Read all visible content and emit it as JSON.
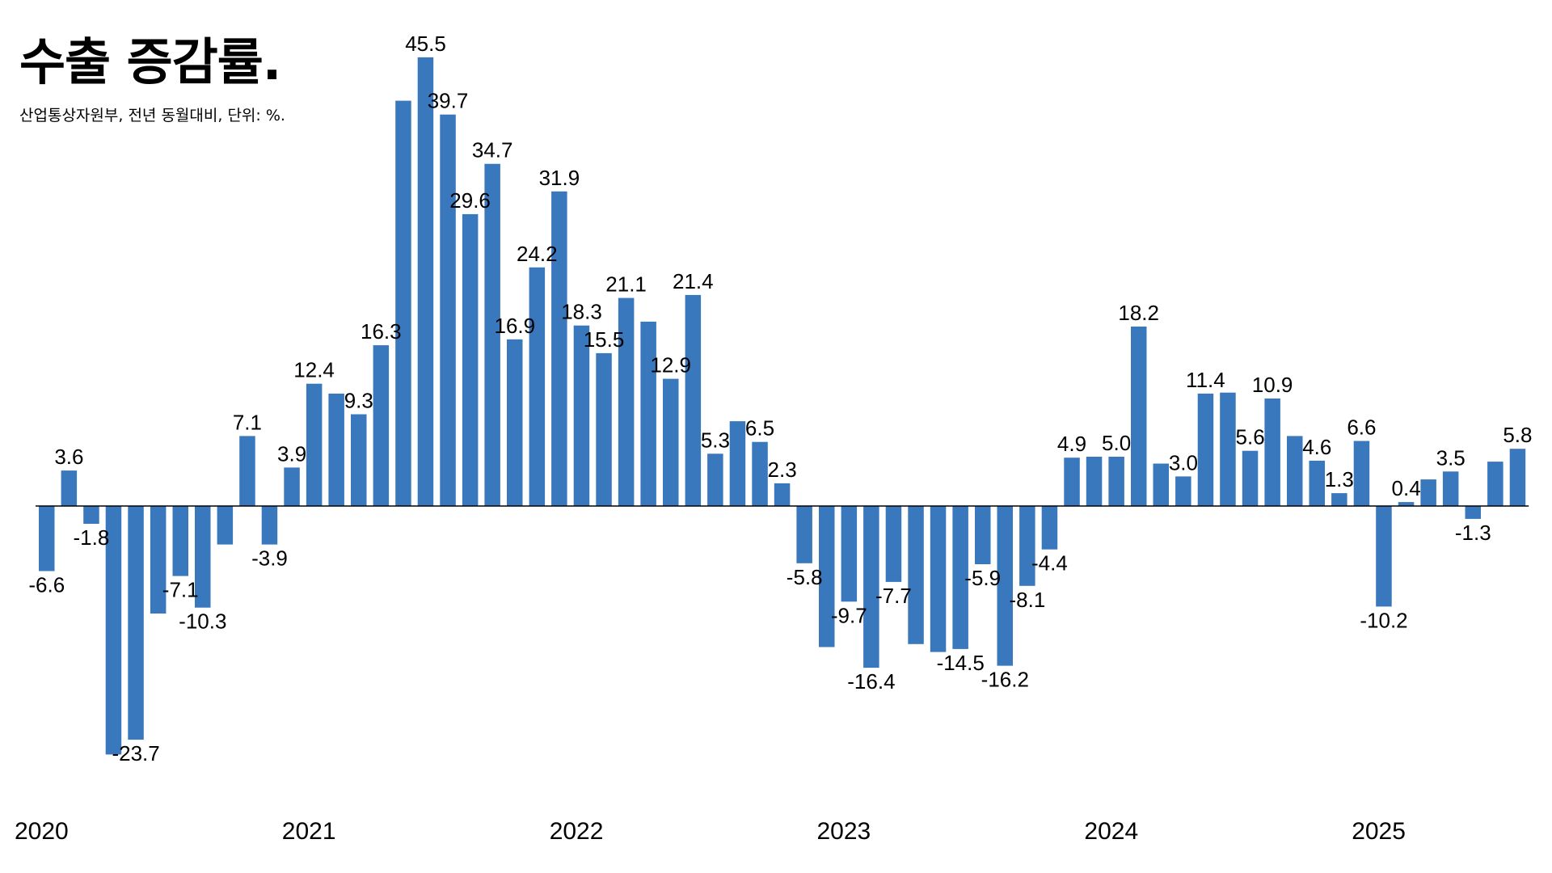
{
  "title": "수출 증감률.",
  "subtitle": "산업통상자원부, 전년 동월대비, 단위: %.",
  "colors": {
    "bar": "#3a78bd",
    "text": "#000000",
    "background": "#ffffff"
  },
  "chart_data": {
    "type": "bar",
    "title": "수출 증감률.",
    "subtitle": "산업통상자원부, 전년 동월대비, 단위: %.",
    "x_tick_labels": [
      "2020",
      "2021",
      "2022",
      "2023",
      "2024",
      "2025"
    ],
    "series": [
      {
        "values": [
          -6.6,
          3.6,
          -1.8,
          -25.2,
          -23.7,
          -10.9,
          -7.1,
          -10.3,
          -3.9,
          7.1,
          -3.9,
          3.9,
          12.4,
          11.4,
          9.3,
          16.3,
          41.1,
          45.5,
          39.7,
          29.6,
          34.7,
          16.9,
          24.2,
          31.9,
          18.3,
          15.5,
          21.1,
          18.7,
          12.9,
          21.4,
          5.3,
          8.6,
          6.5,
          2.3,
          -5.8,
          -14.3,
          -9.7,
          -16.4,
          -7.7,
          -14.0,
          -14.8,
          -14.5,
          -5.9,
          -16.2,
          -8.1,
          -4.4,
          4.9,
          5.0,
          5.0,
          18.2,
          4.3,
          3.0,
          11.4,
          11.5,
          5.6,
          10.9,
          7.1,
          4.6,
          1.3,
          6.6,
          -10.2,
          0.4,
          2.7,
          3.5,
          -1.3,
          4.5,
          5.8
        ],
        "labels": [
          "-6.6",
          "3.6",
          "-1.8",
          "",
          "-23.7",
          "",
          "-7.1",
          "-10.3",
          "",
          "7.1",
          "-3.9",
          "3.9",
          "12.4",
          "",
          "9.3",
          "16.3",
          "",
          "45.5",
          "39.7",
          "29.6",
          "34.7",
          "16.9",
          "24.2",
          "31.9",
          "18.3",
          "15.5",
          "21.1",
          "",
          "12.9",
          "21.4",
          "5.3",
          "",
          "6.5",
          "2.3",
          "-5.8",
          "",
          "-9.7",
          "-16.4",
          "-7.7",
          "",
          "",
          "-14.5",
          "-5.9",
          "-16.2",
          "-8.1",
          "-4.4",
          "4.9",
          "",
          "5.0",
          "18.2",
          "",
          "3.0",
          "11.4",
          "",
          "5.6",
          "10.9",
          "",
          "4.6",
          "1.3",
          "6.6",
          "-10.2",
          "0.4",
          "",
          "3.5",
          "-1.3",
          "",
          "5.8"
        ]
      }
    ],
    "grid": false,
    "legend": "none"
  }
}
